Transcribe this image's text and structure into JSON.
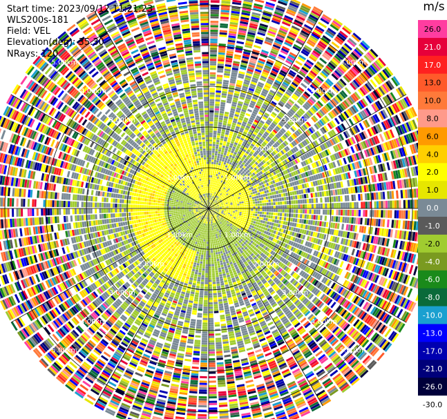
{
  "header": {
    "start_time": "Start time: 2023/09/12 11:21:23",
    "device": "WLS200s-181",
    "field": "Field: VEL",
    "elevation": "Elevation(deg): 35.30",
    "nrays": "NRays: 120"
  },
  "colorbar": {
    "unit": "m/s",
    "entries": [
      {
        "label": "26.0",
        "color": "#ff3da0"
      },
      {
        "label": "21.0",
        "color": "#e6003a"
      },
      {
        "label": "17.0",
        "color": "#ff2020"
      },
      {
        "label": "13.0",
        "color": "#ff5a2a"
      },
      {
        "label": "10.0",
        "color": "#ff7a3a"
      },
      {
        "label": "8.0",
        "color": "#ff9a8a"
      },
      {
        "label": "6.0",
        "color": "#ff9a00"
      },
      {
        "label": "4.0",
        "color": "#ffcf00"
      },
      {
        "label": "2.0",
        "color": "#ffff00"
      },
      {
        "label": "1.0",
        "color": "#e6e600"
      },
      {
        "label": "0.0",
        "color": "#7a8a96"
      },
      {
        "label": "-1.0",
        "color": "#5a5a5a"
      },
      {
        "label": "-2.0",
        "color": "#a0cc30"
      },
      {
        "label": "-4.0",
        "color": "#7a9a20"
      },
      {
        "label": "-6.0",
        "color": "#1a8a1a"
      },
      {
        "label": "-8.0",
        "color": "#0a6a3a"
      },
      {
        "label": "-10.0",
        "color": "#1aa0d0"
      },
      {
        "label": "-13.0",
        "color": "#0000ff"
      },
      {
        "label": "-17.0",
        "color": "#0000b0"
      },
      {
        "label": "-21.0",
        "color": "#00007a"
      },
      {
        "label": "-26.0",
        "color": "#00003a"
      },
      {
        "label": "-30.0",
        "color": "#ffffff"
      }
    ]
  },
  "chart_data": {
    "type": "heatmap",
    "projection": "polar (PPI)",
    "field": "VEL",
    "unit": "m/s",
    "nrays": 120,
    "elevation_deg": 35.3,
    "range_ring_labels": [
      "1.00km",
      "2.00km",
      "3.00km",
      "4.00km",
      "5.00km"
    ],
    "velocity_structure": [
      {
        "range_km": [
          0.0,
          0.4
        ],
        "description": "near-center mixed",
        "values": [
          2.0,
          0.0,
          -2.0
        ]
      },
      {
        "range_km": [
          0.4,
          1.0
        ],
        "description": "bipolar pattern: positive (yellow) toward west/south, negative (green) toward east/north",
        "values": [
          2.0,
          -2.0
        ]
      },
      {
        "range_km": [
          1.0,
          2.2
        ],
        "description": "strong yellow crescent on west side, green on north/east, gray mixed",
        "values": [
          2.0,
          0.0,
          -2.0
        ]
      },
      {
        "range_km": [
          2.2,
          3.5
        ],
        "description": "mostly gray/green with scattered yellow, noise increasing",
        "values": [
          0.0,
          -2.0,
          2.0
        ]
      },
      {
        "range_km": [
          3.5,
          5.6
        ],
        "description": "noise region, all colors",
        "values": []
      }
    ],
    "grid": true
  }
}
